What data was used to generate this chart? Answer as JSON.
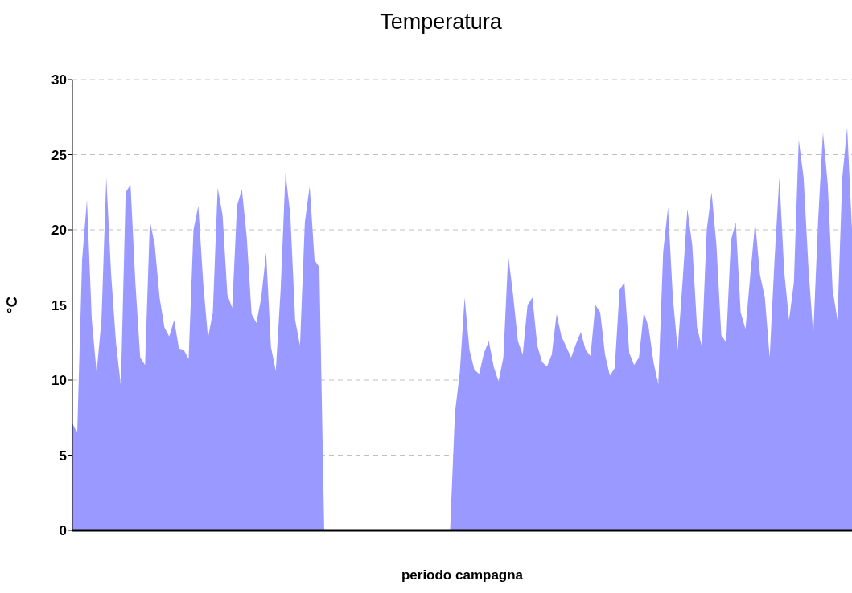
{
  "chart_data": {
    "type": "area",
    "title": "Temperatura",
    "xlabel": "periodo campagna",
    "ylabel": "°C",
    "categories": [
      null,
      null,
      null,
      null,
      null,
      null,
      null,
      null,
      null,
      null,
      null,
      null,
      null,
      null,
      null,
      null,
      null,
      null,
      null,
      null,
      null,
      null,
      null,
      null,
      null,
      null,
      null,
      null,
      null,
      null,
      null,
      null,
      null,
      null,
      null,
      null,
      null,
      null,
      null,
      null,
      null,
      null,
      null,
      null,
      null,
      null,
      null,
      null,
      null,
      null,
      null,
      null,
      null,
      null,
      null,
      null,
      null,
      null,
      null,
      null,
      null,
      null,
      null,
      null,
      null,
      null,
      null,
      null,
      null,
      null,
      null,
      null,
      null,
      null,
      null,
      null,
      null,
      null,
      null,
      null,
      null,
      null,
      null,
      null,
      null,
      null,
      null,
      null,
      null,
      null,
      null,
      null,
      null,
      null,
      null,
      null,
      null,
      null,
      null,
      null,
      null,
      null,
      null,
      null,
      null,
      null,
      null,
      null,
      null,
      null,
      null,
      null,
      null,
      null,
      null,
      null,
      null,
      null,
      null,
      null,
      null,
      null,
      null,
      null,
      null,
      null,
      null,
      null,
      null,
      null,
      null,
      null,
      null,
      null,
      null,
      null,
      null,
      null,
      null,
      null,
      null,
      null,
      null,
      null,
      null,
      null,
      null,
      null,
      null,
      null,
      null,
      null,
      null,
      null,
      null,
      null,
      null,
      null,
      null,
      null,
      null,
      null
    ],
    "values": [
      7.1,
      6.5,
      18,
      22,
      14,
      10.5,
      14,
      23.5,
      17,
      12.5,
      9.6,
      22.5,
      23,
      16.5,
      11.5,
      11,
      20.6,
      19,
      15.5,
      13.5,
      12.9,
      14,
      12.1,
      12,
      11.4,
      20,
      21.6,
      16.5,
      12.8,
      14.5,
      22.8,
      21,
      15.7,
      14.8,
      21.6,
      22.7,
      19.5,
      14.4,
      13.8,
      15.5,
      18.5,
      12.2,
      10.6,
      16,
      23.8,
      21,
      14,
      12.3,
      20.5,
      22.9,
      18,
      17.5,
      null,
      null,
      null,
      null,
      null,
      null,
      null,
      null,
      null,
      null,
      null,
      null,
      null,
      null,
      null,
      null,
      null,
      null,
      null,
      null,
      null,
      null,
      null,
      null,
      null,
      null,
      null,
      7.8,
      10.5,
      15.5,
      12,
      10.7,
      10.4,
      11.8,
      12.6,
      10.9,
      9.9,
      11.5,
      18.3,
      15.7,
      12.6,
      11.7,
      15,
      15.5,
      12.3,
      11.2,
      10.9,
      11.7,
      14.4,
      12.9,
      12.2,
      11.5,
      12.4,
      13.2,
      12,
      11.6,
      15,
      14.5,
      11.7,
      10.3,
      10.8,
      16,
      16.5,
      11.8,
      11,
      11.5,
      14.5,
      13.5,
      11.2,
      9.7,
      18.5,
      21.5,
      15.5,
      12,
      16.5,
      21.4,
      19,
      13.5,
      12.2,
      20,
      22.5,
      19,
      13,
      12.5,
      19.3,
      20.5,
      14.5,
      13.4,
      17,
      20.5,
      17,
      15.5,
      11.5,
      18,
      23.5,
      17.2,
      14,
      16.5,
      26,
      23.5,
      17.5,
      13,
      20.6,
      26.5,
      23,
      16,
      14,
      23.5,
      26.8,
      20
    ],
    "color": "#9999ff",
    "ylim": [
      0,
      30
    ],
    "yticks": [
      0,
      5,
      10,
      15,
      20,
      25,
      30
    ],
    "grid": "y"
  }
}
